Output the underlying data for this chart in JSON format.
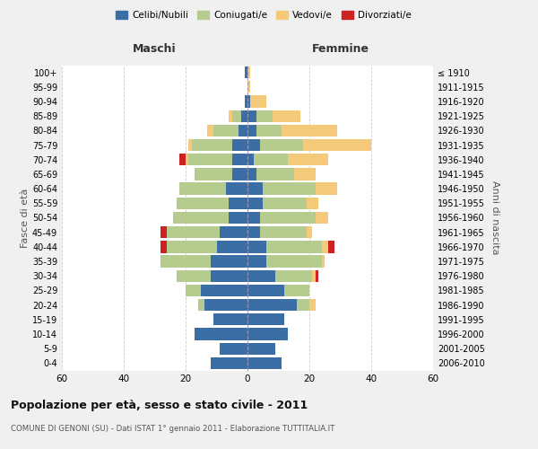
{
  "age_groups": [
    "0-4",
    "5-9",
    "10-14",
    "15-19",
    "20-24",
    "25-29",
    "30-34",
    "35-39",
    "40-44",
    "45-49",
    "50-54",
    "55-59",
    "60-64",
    "65-69",
    "70-74",
    "75-79",
    "80-84",
    "85-89",
    "90-94",
    "95-99",
    "100+"
  ],
  "birth_years": [
    "2006-2010",
    "2001-2005",
    "1996-2000",
    "1991-1995",
    "1986-1990",
    "1981-1985",
    "1976-1980",
    "1971-1975",
    "1966-1970",
    "1961-1965",
    "1956-1960",
    "1951-1955",
    "1946-1950",
    "1941-1945",
    "1936-1940",
    "1931-1935",
    "1926-1930",
    "1921-1925",
    "1916-1920",
    "1911-1915",
    "≤ 1910"
  ],
  "maschi": {
    "celibi": [
      12,
      9,
      17,
      11,
      14,
      15,
      12,
      12,
      10,
      9,
      6,
      6,
      7,
      5,
      5,
      5,
      3,
      2,
      1,
      0,
      1
    ],
    "coniugati": [
      0,
      0,
      0,
      0,
      2,
      5,
      11,
      16,
      16,
      17,
      18,
      17,
      15,
      12,
      14,
      13,
      8,
      3,
      0,
      0,
      0
    ],
    "vedovi": [
      0,
      0,
      0,
      0,
      0,
      0,
      0,
      0,
      0,
      0,
      0,
      0,
      0,
      0,
      1,
      1,
      2,
      1,
      0,
      0,
      0
    ],
    "divorziati": [
      0,
      0,
      0,
      0,
      0,
      0,
      0,
      0,
      2,
      2,
      0,
      0,
      0,
      0,
      2,
      0,
      0,
      0,
      0,
      0,
      0
    ]
  },
  "femmine": {
    "nubili": [
      11,
      9,
      13,
      12,
      16,
      12,
      9,
      6,
      6,
      4,
      4,
      5,
      5,
      3,
      2,
      4,
      3,
      3,
      1,
      0,
      0
    ],
    "coniugate": [
      0,
      0,
      0,
      0,
      4,
      8,
      12,
      18,
      18,
      15,
      18,
      14,
      17,
      12,
      11,
      14,
      8,
      5,
      0,
      0,
      0
    ],
    "vedove": [
      0,
      0,
      0,
      0,
      2,
      0,
      1,
      1,
      2,
      2,
      4,
      4,
      7,
      7,
      13,
      22,
      18,
      9,
      5,
      1,
      1
    ],
    "divorziate": [
      0,
      0,
      0,
      0,
      0,
      0,
      1,
      0,
      2,
      0,
      0,
      0,
      0,
      0,
      0,
      0,
      0,
      0,
      0,
      0,
      0
    ]
  },
  "colors": {
    "celibi": "#3a6ea5",
    "coniugati": "#b5cc8e",
    "vedovi": "#f5c97a",
    "divorziati": "#cc2222"
  },
  "legend_labels": [
    "Celibi/Nubili",
    "Coniugati/e",
    "Vedovi/e",
    "Divorziati/e"
  ],
  "title": "Popolazione per età, sesso e stato civile - 2011",
  "subtitle": "COMUNE DI GENONI (SU) - Dati ISTAT 1° gennaio 2011 - Elaborazione TUTTITALIA.IT",
  "xlabel_left": "Maschi",
  "xlabel_right": "Femmine",
  "ylabel_left": "Fasce di età",
  "ylabel_right": "Anni di nascita",
  "xlim": 60,
  "bg_color": "#f0f0f0",
  "plot_bg_color": "#ffffff"
}
